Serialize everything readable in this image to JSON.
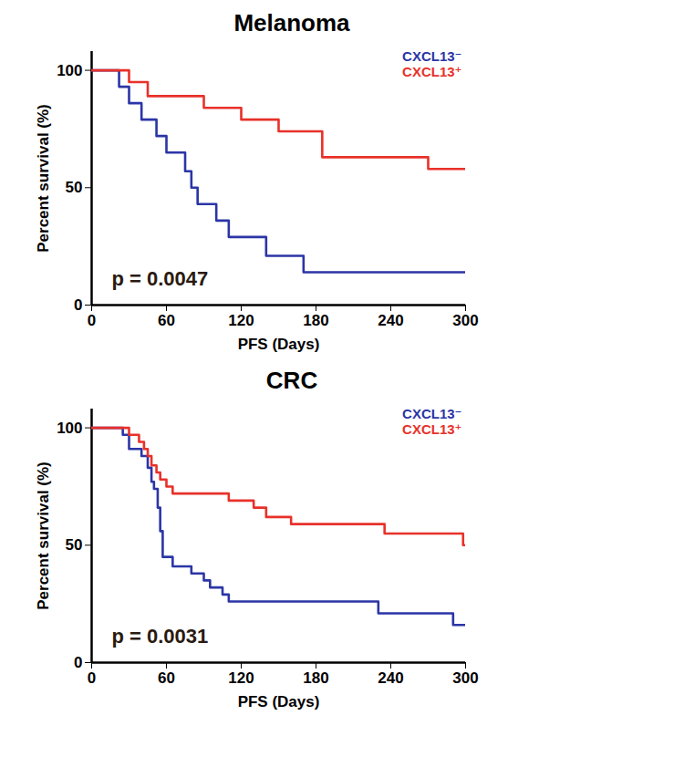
{
  "chart_data": [
    {
      "type": "line",
      "title": "Melanoma",
      "x_label": "PFS (Days)",
      "y_label": "Percent survival (%)",
      "line_style": "step",
      "legend": "top-right",
      "annotation": "p = 0.0047",
      "xlim": [
        0,
        300
      ],
      "xticks": [
        0,
        60,
        120,
        180,
        240,
        300
      ],
      "ylim": [
        0,
        108
      ],
      "yticks": [
        0,
        50,
        100
      ],
      "series": [
        {
          "name": "CXCL13⁻",
          "color": "#2b35a6",
          "x": [
            0,
            22,
            30,
            40,
            52,
            60,
            75,
            80,
            85,
            100,
            110,
            140,
            170,
            300
          ],
          "values": [
            100,
            93,
            86,
            79,
            72,
            65,
            57,
            50,
            43,
            36,
            29,
            21,
            14,
            14
          ]
        },
        {
          "name": "CXCL13⁺",
          "color": "#e8312a",
          "x": [
            0,
            30,
            45,
            90,
            120,
            150,
            185,
            270,
            300
          ],
          "values": [
            100,
            95,
            89,
            84,
            79,
            74,
            63,
            58,
            58
          ]
        }
      ]
    },
    {
      "type": "line",
      "title": "CRC",
      "x_label": "PFS (Days)",
      "y_label": "Percent survival (%)",
      "line_style": "step",
      "legend": "top-right",
      "annotation": "p = 0.0031",
      "xlim": [
        0,
        300
      ],
      "xticks": [
        0,
        60,
        120,
        180,
        240,
        300
      ],
      "ylim": [
        0,
        108
      ],
      "yticks": [
        0,
        50,
        100
      ],
      "series": [
        {
          "name": "CXCL13⁻",
          "color": "#2b35a6",
          "x": [
            0,
            25,
            30,
            40,
            45,
            48,
            50,
            53,
            55,
            57,
            65,
            80,
            90,
            95,
            105,
            110,
            230,
            290,
            300
          ],
          "values": [
            100,
            97,
            91,
            88,
            83,
            77,
            74,
            66,
            56,
            45,
            41,
            38,
            35,
            32,
            29,
            26,
            21,
            16,
            16
          ]
        },
        {
          "name": "CXCL13⁺",
          "color": "#e8312a",
          "x": [
            0,
            30,
            38,
            42,
            45,
            48,
            52,
            55,
            60,
            65,
            110,
            130,
            140,
            160,
            235,
            298,
            300
          ],
          "values": [
            100,
            97,
            94,
            91,
            88,
            84,
            81,
            78,
            75,
            72,
            69,
            66,
            62,
            59,
            55,
            50,
            50
          ]
        }
      ]
    }
  ]
}
